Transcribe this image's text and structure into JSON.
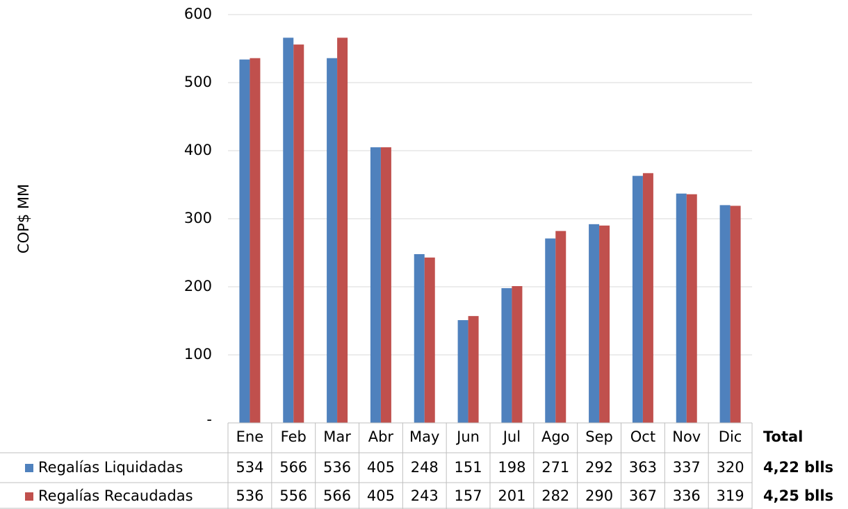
{
  "chart_data": {
    "type": "bar",
    "y_axis_label": "COP$ MM",
    "categories": [
      "Ene",
      "Feb",
      "Mar",
      "Abr",
      "May",
      "Jun",
      "Jul",
      "Ago",
      "Sep",
      "Oct",
      "Nov",
      "Dic"
    ],
    "series": [
      {
        "name": "Regalías Liquidadas",
        "color": "#4f81bd",
        "values": [
          534,
          566,
          536,
          405,
          248,
          151,
          198,
          271,
          292,
          363,
          337,
          320
        ],
        "total": "4,22 blls"
      },
      {
        "name": "Regalías Recaudadas",
        "color": "#c0504d",
        "values": [
          536,
          556,
          566,
          405,
          243,
          157,
          201,
          282,
          290,
          367,
          336,
          319
        ],
        "total": "4,25 blls"
      }
    ],
    "total_header": "Total",
    "ylim": [
      0,
      600
    ],
    "yticks": [
      {
        "value": 0,
        "label": "-"
      },
      100,
      200,
      300,
      400,
      500,
      600
    ],
    "grid": true
  }
}
